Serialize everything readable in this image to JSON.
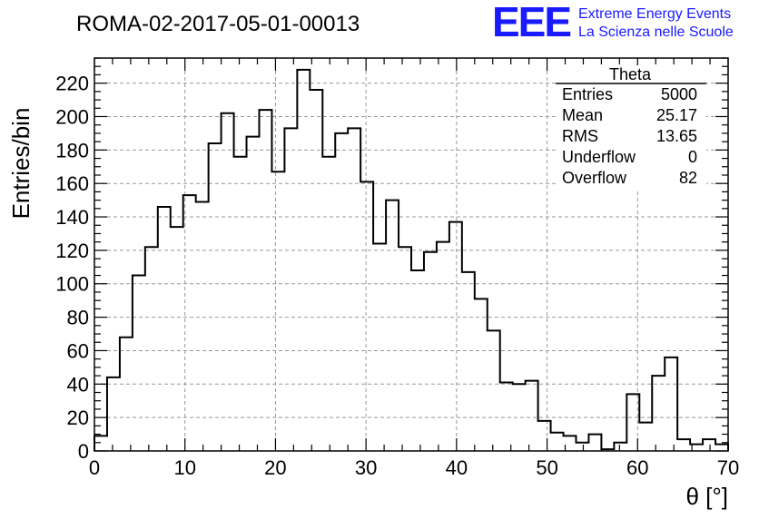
{
  "header": {
    "run_title": "ROMA-02-2017-05-01-00013",
    "logo_letters": "EEE",
    "logo_line1": "Extreme Energy Events",
    "logo_line2": "La Scienza nelle Scuole"
  },
  "stats_box": {
    "title": "Theta",
    "rows": [
      {
        "label": "Entries",
        "value": "5000"
      },
      {
        "label": "Mean",
        "value": "25.17"
      },
      {
        "label": "RMS",
        "value": "13.65"
      },
      {
        "label": "Underflow",
        "value": "0"
      },
      {
        "label": "Overflow",
        "value": "82"
      }
    ]
  },
  "chart_data": {
    "type": "histogram",
    "title": "ROMA-02-2017-05-01-00013",
    "xlabel": "θ [°]",
    "ylabel": "Entries/bin",
    "xlim": [
      0,
      70
    ],
    "ylim": [
      0,
      235
    ],
    "grid": true,
    "x_ticks": [
      0,
      10,
      20,
      30,
      40,
      50,
      60,
      70
    ],
    "y_ticks": [
      0,
      20,
      40,
      60,
      80,
      100,
      120,
      140,
      160,
      180,
      200,
      220
    ],
    "bin_width": 1.4,
    "bin_edges_start": 0,
    "values": [
      9,
      44,
      68,
      105,
      122,
      146,
      134,
      153,
      149,
      184,
      202,
      176,
      188,
      204,
      167,
      193,
      228,
      216,
      176,
      190,
      193,
      161,
      124,
      150,
      122,
      108,
      119,
      125,
      137,
      107,
      91,
      72,
      41,
      40,
      42,
      18,
      11,
      9,
      5,
      10,
      1,
      5,
      34,
      17,
      45,
      56,
      7,
      4,
      7,
      4
    ]
  },
  "colors": {
    "histogram_line": "#000000",
    "grid": "#999999",
    "logo": "#1a1aff"
  }
}
